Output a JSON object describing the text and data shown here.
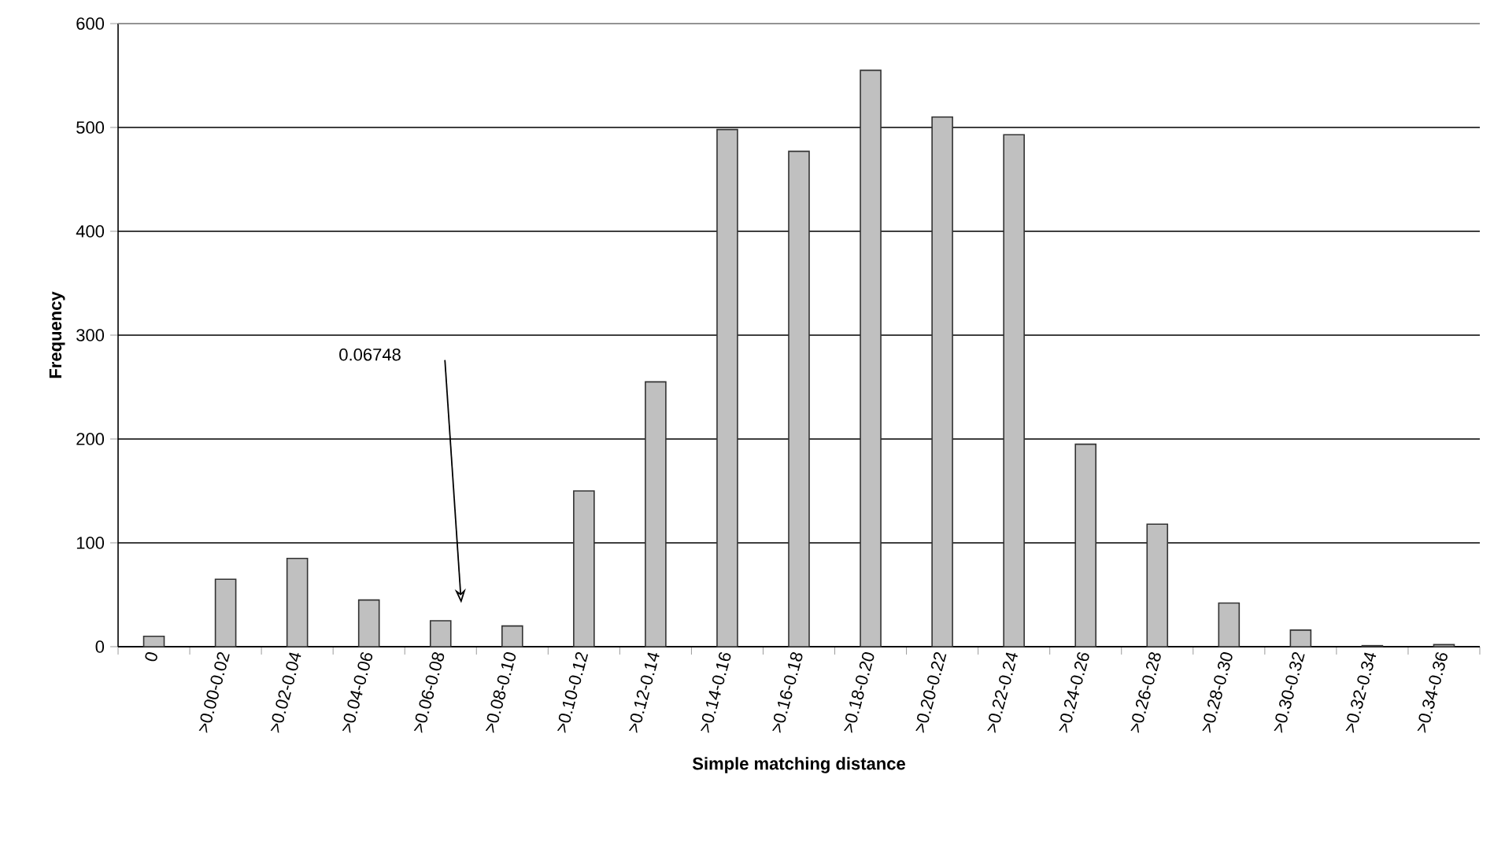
{
  "chart_data": {
    "type": "bar",
    "xlabel": "Simple matching distance",
    "ylabel": "Frequency",
    "categories": [
      "0",
      ">0.00-0.02",
      ">0.02-0.04",
      ">0.04-0.06",
      ">0.06-0.08",
      ">0.08-0.10",
      ">0.10-0.12",
      ">0.12-0.14",
      ">0.14-0.16",
      ">0.16-0.18",
      ">0.18-0.20",
      ">0.20-0.22",
      ">0.22-0.24",
      ">0.24-0.26",
      ">0.26-0.28",
      ">0.28-0.30",
      ">0.30-0.32",
      ">0.32-0.34",
      ">0.34-0.36"
    ],
    "values": [
      10,
      65,
      85,
      45,
      25,
      20,
      150,
      255,
      498,
      477,
      555,
      510,
      493,
      195,
      118,
      42,
      16,
      1,
      2
    ],
    "color": "#c0c0c0",
    "ylim": [
      0,
      600
    ],
    "yticks": [
      0,
      100,
      200,
      300,
      400,
      500,
      600
    ],
    "grid": "y",
    "annotations": [
      "0.06748"
    ]
  }
}
